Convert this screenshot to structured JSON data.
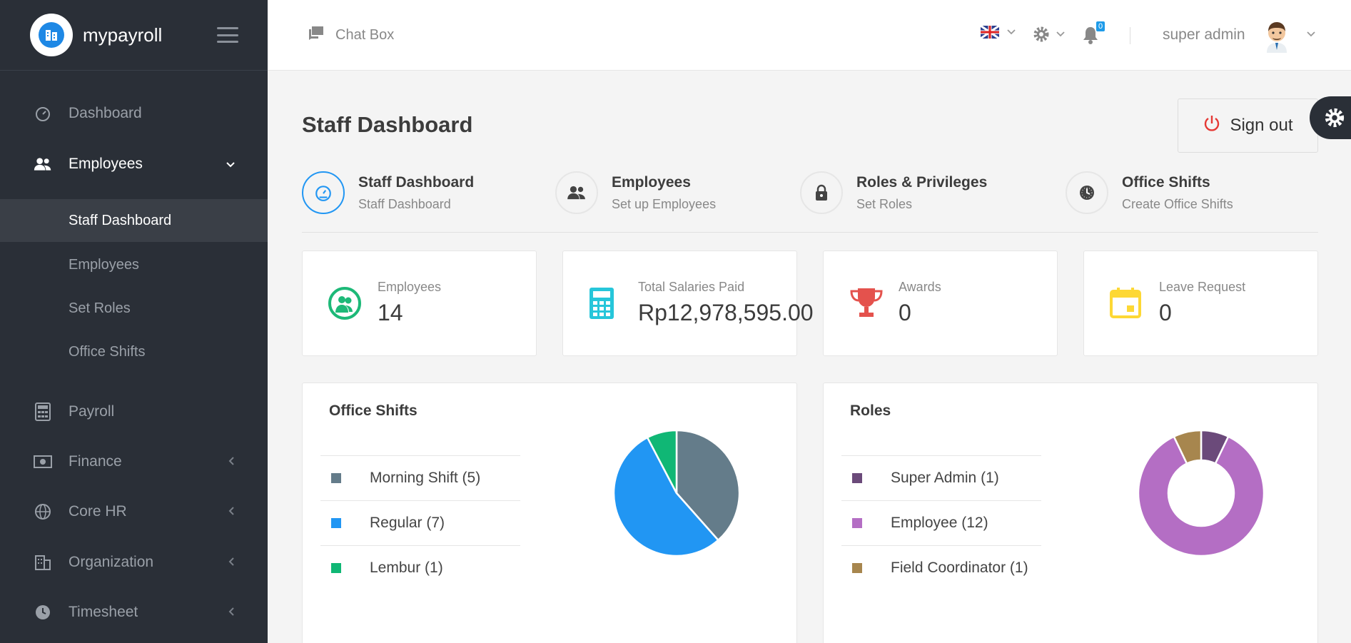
{
  "brand": {
    "name": "mypayroll"
  },
  "sidebar": {
    "items": [
      {
        "label": "Dashboard"
      },
      {
        "label": "Employees"
      },
      {
        "label": "Payroll"
      },
      {
        "label": "Finance"
      },
      {
        "label": "Core HR"
      },
      {
        "label": "Organization"
      },
      {
        "label": "Timesheet"
      }
    ],
    "sub_items": [
      {
        "label": "Staff Dashboard"
      },
      {
        "label": "Employees"
      },
      {
        "label": "Set Roles"
      },
      {
        "label": "Office Shifts"
      }
    ]
  },
  "topbar": {
    "chatbox_label": "Chat Box",
    "notification_count": "0",
    "username": "super admin"
  },
  "page": {
    "title": "Staff Dashboard",
    "signout_label": "Sign out"
  },
  "quick_links": [
    {
      "title": "Staff Dashboard",
      "subtitle": "Staff Dashboard"
    },
    {
      "title": "Employees",
      "subtitle": "Set up Employees"
    },
    {
      "title": "Roles & Privileges",
      "subtitle": "Set Roles"
    },
    {
      "title": "Office Shifts",
      "subtitle": "Create Office Shifts"
    }
  ],
  "stats": [
    {
      "label": "Employees",
      "value": "14",
      "color": "#1db978"
    },
    {
      "label": "Total Salaries Paid",
      "value": "Rp12,978,595.00",
      "color": "#26c6da"
    },
    {
      "label": "Awards",
      "value": "0",
      "color": "#e4524d"
    },
    {
      "label": "Leave Request",
      "value": "0",
      "color": "#fdd835"
    }
  ],
  "office_shifts": {
    "title": "Office Shifts",
    "legend": [
      {
        "label": "Morning Shift (5)"
      },
      {
        "label": "Regular (7)"
      },
      {
        "label": "Lembur (1)"
      }
    ]
  },
  "roles": {
    "title": "Roles",
    "legend": [
      {
        "label": "Super Admin (1)"
      },
      {
        "label": "Employee (12)"
      },
      {
        "label": "Field Coordinator (1)"
      }
    ]
  },
  "chart_data": [
    {
      "type": "pie",
      "categories": [
        "Morning Shift",
        "Regular",
        "Lembur"
      ],
      "values": [
        5,
        7,
        1
      ],
      "colors": [
        "#647c8a",
        "#2196f3",
        "#10b775"
      ]
    },
    {
      "type": "pie",
      "donut": true,
      "categories": [
        "Super Admin",
        "Employee",
        "Field Coordinator"
      ],
      "values": [
        1,
        12,
        1
      ],
      "colors": [
        "#6b4a7a",
        "#b46ec4",
        "#a7864e"
      ]
    }
  ]
}
